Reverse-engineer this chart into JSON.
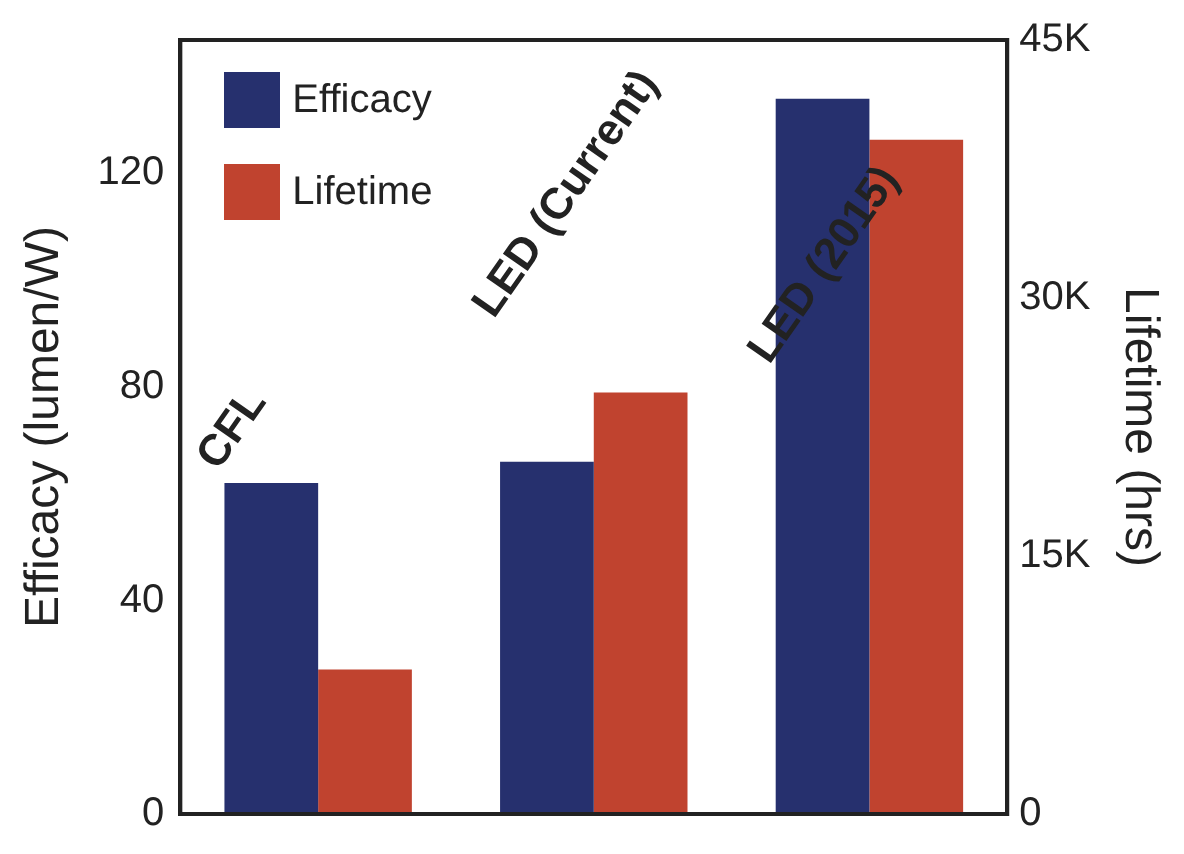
{
  "chart_data": {
    "type": "bar",
    "categories": [
      "CFL",
      "LED (Current)",
      "LED (2015)"
    ],
    "series": [
      {
        "name": "Efficacy",
        "color": "#26306e",
        "values": [
          62,
          66,
          134
        ]
      },
      {
        "name": "Lifetime",
        "color": "#c0432f",
        "values": [
          8400,
          24500,
          39200
        ],
        "axis": "y2"
      }
    ],
    "ylabel": "Efficacy (lumen/W)",
    "y2label": "Lifetime (hrs)",
    "ylim": [
      0,
      145
    ],
    "yticks": [
      0,
      40,
      80,
      120
    ],
    "y2lim": [
      0,
      45000
    ],
    "y2ticks": [
      {
        "value": 0,
        "label": "0"
      },
      {
        "value": 15000,
        "label": "15K"
      },
      {
        "value": 30000,
        "label": "30K"
      },
      {
        "value": 45000,
        "label": "45K"
      }
    ],
    "grid": false,
    "legend": "top left"
  }
}
